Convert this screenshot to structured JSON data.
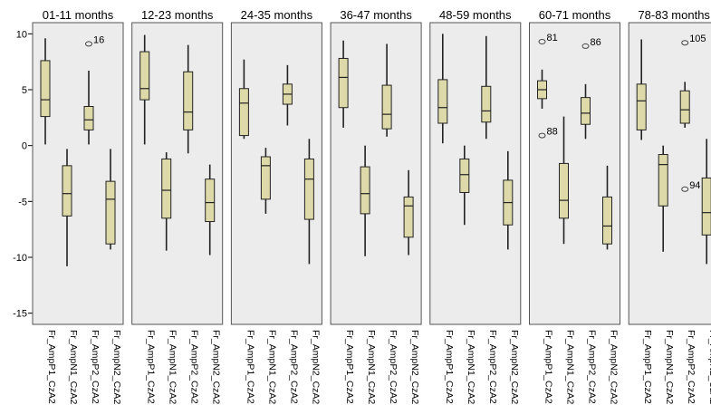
{
  "chart_data": {
    "type": "boxplot",
    "title": "",
    "xlabel": "",
    "ylabel": "",
    "ylim": [
      -16,
      11
    ],
    "yticks": [
      10,
      5,
      0,
      -5,
      -10,
      -15
    ],
    "grid": false,
    "colors": {
      "box_fill": "#ddd9a8",
      "box_stroke": "#222222",
      "panel_bg": "#ececec",
      "panel_border": "#555555"
    },
    "categories": [
      "Fr_AmpP1_CzA2",
      "Fr_AmpN1_CzA2",
      "Fr_AmpP2_CzA2",
      "Fr_AmpN2_CzA2"
    ],
    "panels": [
      {
        "title": "01-11 months",
        "boxes": [
          {
            "whisker_low": 0.1,
            "q1": 2.6,
            "median": 4.1,
            "q3": 7.6,
            "whisker_high": 9.6,
            "outliers": []
          },
          {
            "whisker_low": -10.8,
            "q1": -6.3,
            "median": -4.3,
            "q3": -1.8,
            "whisker_high": -0.3,
            "outliers": []
          },
          {
            "whisker_low": 0.1,
            "q1": 1.4,
            "median": 2.3,
            "q3": 3.5,
            "whisker_high": 6.7,
            "outliers": [
              {
                "value": 9.1,
                "label": "16"
              }
            ]
          },
          {
            "whisker_low": -9.3,
            "q1": -8.8,
            "median": -4.8,
            "q3": -3.2,
            "whisker_high": -0.3,
            "outliers": []
          }
        ]
      },
      {
        "title": "12-23 months",
        "boxes": [
          {
            "whisker_low": 0.1,
            "q1": 4.1,
            "median": 5.1,
            "q3": 8.4,
            "whisker_high": 9.9,
            "outliers": []
          },
          {
            "whisker_low": -9.4,
            "q1": -6.5,
            "median": -4.0,
            "q3": -1.2,
            "whisker_high": -0.6,
            "outliers": []
          },
          {
            "whisker_low": -0.7,
            "q1": 1.4,
            "median": 3.0,
            "q3": 6.6,
            "whisker_high": 9.0,
            "outliers": []
          },
          {
            "whisker_low": -9.8,
            "q1": -6.8,
            "median": -5.1,
            "q3": -3.0,
            "whisker_high": -1.7,
            "outliers": []
          }
        ]
      },
      {
        "title": "24-35 months",
        "boxes": [
          {
            "whisker_low": 0.6,
            "q1": 0.9,
            "median": 3.8,
            "q3": 5.1,
            "whisker_high": 7.7,
            "outliers": []
          },
          {
            "whisker_low": -6.1,
            "q1": -4.8,
            "median": -1.8,
            "q3": -1.0,
            "whisker_high": -0.2,
            "outliers": []
          },
          {
            "whisker_low": 1.8,
            "q1": 3.7,
            "median": 4.6,
            "q3": 5.5,
            "whisker_high": 7.2,
            "outliers": []
          },
          {
            "whisker_low": -10.6,
            "q1": -6.6,
            "median": -3.0,
            "q3": -1.2,
            "whisker_high": 0.6,
            "outliers": []
          }
        ]
      },
      {
        "title": "36-47 months",
        "boxes": [
          {
            "whisker_low": 1.6,
            "q1": 3.4,
            "median": 6.1,
            "q3": 7.8,
            "whisker_high": 9.4,
            "outliers": []
          },
          {
            "whisker_low": -9.9,
            "q1": -6.1,
            "median": -4.3,
            "q3": -1.9,
            "whisker_high": 0.0,
            "outliers": []
          },
          {
            "whisker_low": 0.8,
            "q1": 1.5,
            "median": 2.8,
            "q3": 5.4,
            "whisker_high": 9.1,
            "outliers": []
          },
          {
            "whisker_low": -9.8,
            "q1": -8.2,
            "median": -5.4,
            "q3": -4.6,
            "whisker_high": -2.2,
            "outliers": []
          }
        ]
      },
      {
        "title": "48-59 months",
        "boxes": [
          {
            "whisker_low": 0.2,
            "q1": 2.0,
            "median": 3.4,
            "q3": 5.9,
            "whisker_high": 10.0,
            "outliers": []
          },
          {
            "whisker_low": -7.1,
            "q1": -4.2,
            "median": -2.6,
            "q3": -1.2,
            "whisker_high": 0.0,
            "outliers": []
          },
          {
            "whisker_low": 0.6,
            "q1": 2.1,
            "median": 3.1,
            "q3": 5.3,
            "whisker_high": 9.8,
            "outliers": []
          },
          {
            "whisker_low": -9.3,
            "q1": -7.1,
            "median": -5.1,
            "q3": -3.1,
            "whisker_high": -0.5,
            "outliers": []
          }
        ]
      },
      {
        "title": "60-71 months",
        "boxes": [
          {
            "whisker_low": 3.3,
            "q1": 4.2,
            "median": 5.0,
            "q3": 5.8,
            "whisker_high": 6.8,
            "outliers": [
              {
                "value": 9.3,
                "label": "81"
              },
              {
                "value": 0.9,
                "label": "88"
              }
            ]
          },
          {
            "whisker_low": -8.8,
            "q1": -6.5,
            "median": -4.9,
            "q3": -1.6,
            "whisker_high": 2.6,
            "outliers": []
          },
          {
            "whisker_low": 0.6,
            "q1": 1.9,
            "median": 2.9,
            "q3": 4.3,
            "whisker_high": 5.5,
            "outliers": [
              {
                "value": 8.9,
                "label": "86"
              }
            ]
          },
          {
            "whisker_low": -9.3,
            "q1": -8.8,
            "median": -7.2,
            "q3": -4.6,
            "whisker_high": -1.8,
            "outliers": []
          }
        ]
      },
      {
        "title": "78-83 months",
        "boxes": [
          {
            "whisker_low": 0.5,
            "q1": 1.4,
            "median": 4.0,
            "q3": 5.5,
            "whisker_high": 9.5,
            "outliers": []
          },
          {
            "whisker_low": -9.5,
            "q1": -5.4,
            "median": -1.7,
            "q3": -0.8,
            "whisker_high": 0.0,
            "outliers": []
          },
          {
            "whisker_low": 1.6,
            "q1": 2.0,
            "median": 3.2,
            "q3": 4.9,
            "whisker_high": 5.7,
            "outliers": [
              {
                "value": 9.2,
                "label": "105"
              },
              {
                "value": -3.9,
                "label": "94"
              }
            ]
          },
          {
            "whisker_low": -10.6,
            "q1": -8.0,
            "median": -6.0,
            "q3": -2.9,
            "whisker_high": 0.6,
            "outliers": []
          }
        ]
      }
    ]
  }
}
